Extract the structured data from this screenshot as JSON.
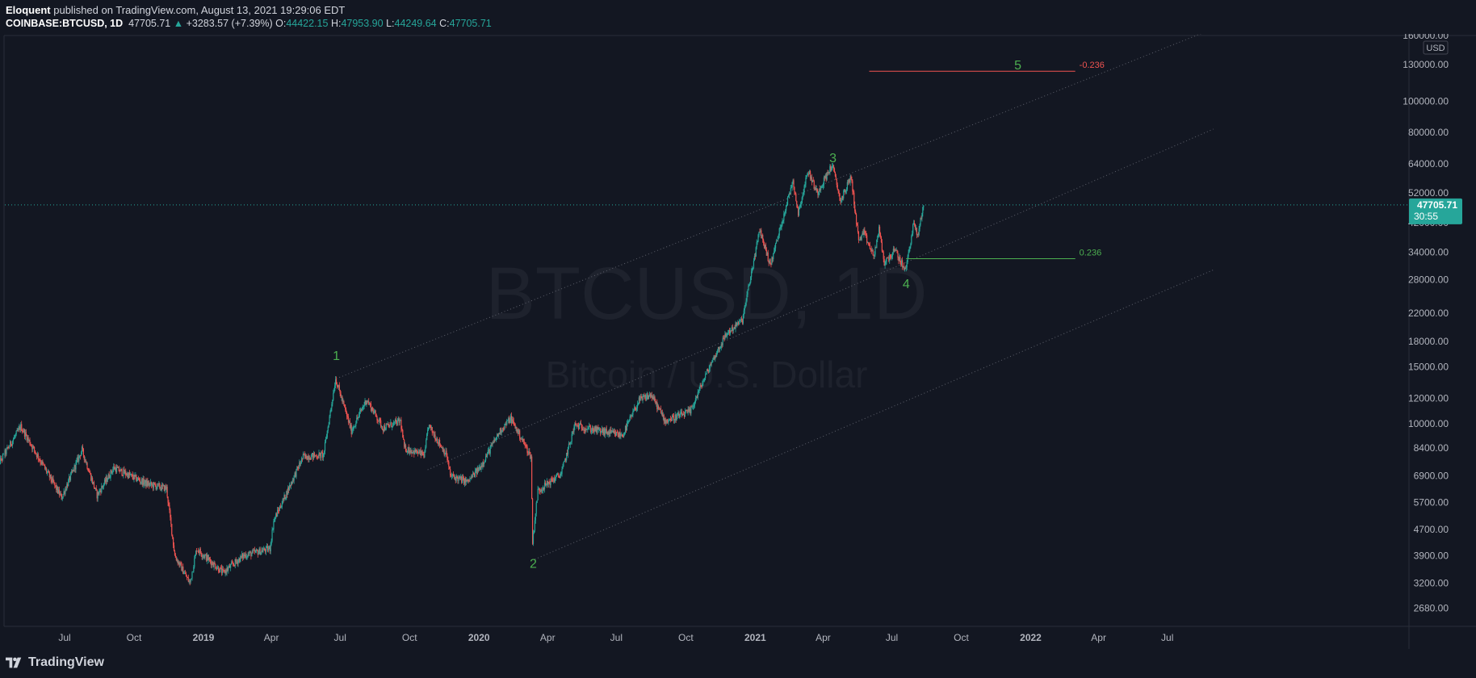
{
  "header": {
    "author": "Eloquent",
    "published_text": "published on TradingView.com, August 13, 2021 19:29:06 EDT",
    "symbol": "COINBASE:BTCUSD, 1D",
    "last": "47705.71",
    "change_arrow": "▲",
    "change": "+3283.57 (+7.39%)",
    "o_label": "O:",
    "o_value": "44422.15",
    "h_label": "H:",
    "h_value": "47953.90",
    "l_label": "L:",
    "l_value": "44249.64",
    "c_label": "C:",
    "c_value": "47705.71"
  },
  "footer": {
    "brand": "TradingView"
  },
  "colors": {
    "background": "#131722",
    "up": "#26a69a",
    "down": "#ef5350",
    "wave_label": "#4caf50",
    "fib_negative": "#ef5350",
    "fib_positive": "#4caf50",
    "axis_text": "#b2b5be",
    "watermark": "#1e222d",
    "price_tag_bg": "#26a69a"
  },
  "chart_data": {
    "type": "candlestick",
    "title": "BTCUSD, 1D",
    "subtitle": "Bitcoin / U.S. Dollar",
    "y_scale": "log",
    "currency": "USD",
    "x_range": [
      "2018-04-01",
      "2022-08-31"
    ],
    "x_ticks": [
      {
        "date": "2018-07-01",
        "label": "Jul"
      },
      {
        "date": "2018-10-01",
        "label": "Oct"
      },
      {
        "date": "2019-01-01",
        "label": "2019",
        "major": true
      },
      {
        "date": "2019-04-01",
        "label": "Apr"
      },
      {
        "date": "2019-07-01",
        "label": "Jul"
      },
      {
        "date": "2019-10-01",
        "label": "Oct"
      },
      {
        "date": "2020-01-01",
        "label": "2020",
        "major": true
      },
      {
        "date": "2020-04-01",
        "label": "Apr"
      },
      {
        "date": "2020-07-01",
        "label": "Jul"
      },
      {
        "date": "2020-10-01",
        "label": "Oct"
      },
      {
        "date": "2021-01-01",
        "label": "2021",
        "major": true
      },
      {
        "date": "2021-04-01",
        "label": "Apr"
      },
      {
        "date": "2021-07-01",
        "label": "Jul"
      },
      {
        "date": "2021-10-01",
        "label": "Oct"
      },
      {
        "date": "2022-01-01",
        "label": "2022",
        "major": true
      },
      {
        "date": "2022-04-01",
        "label": "Apr"
      },
      {
        "date": "2022-07-01",
        "label": "Jul"
      }
    ],
    "y_ticks": [
      {
        "value": 160000,
        "label": "160000.00"
      },
      {
        "value": 130000,
        "label": "130000.00"
      },
      {
        "value": 100000,
        "label": "100000.00"
      },
      {
        "value": 80000,
        "label": "80000.00"
      },
      {
        "value": 64000,
        "label": "64000.00"
      },
      {
        "value": 52000,
        "label": "52000.00"
      },
      {
        "value": 42000,
        "label": "42000.00"
      },
      {
        "value": 34000,
        "label": "34000.00"
      },
      {
        "value": 28000,
        "label": "28000.00"
      },
      {
        "value": 22000,
        "label": "22000.00"
      },
      {
        "value": 18000,
        "label": "18000.00"
      },
      {
        "value": 15000,
        "label": "15000.00"
      },
      {
        "value": 12000,
        "label": "12000.00"
      },
      {
        "value": 10000,
        "label": "10000.00"
      },
      {
        "value": 8400,
        "label": "8400.00"
      },
      {
        "value": 6900,
        "label": "6900.00"
      },
      {
        "value": 5700,
        "label": "5700.00"
      },
      {
        "value": 4700,
        "label": "4700.00"
      },
      {
        "value": 3900,
        "label": "3900.00"
      },
      {
        "value": 3200,
        "label": "3200.00"
      },
      {
        "value": 2680,
        "label": "2680.00"
      }
    ],
    "price_key_points": [
      {
        "date": "2018-04-01",
        "price": 7200
      },
      {
        "date": "2018-05-05",
        "price": 9800
      },
      {
        "date": "2018-06-28",
        "price": 5900
      },
      {
        "date": "2018-07-25",
        "price": 8300
      },
      {
        "date": "2018-08-14",
        "price": 6000
      },
      {
        "date": "2018-09-05",
        "price": 7300
      },
      {
        "date": "2018-10-20",
        "price": 6500
      },
      {
        "date": "2018-11-14",
        "price": 6300
      },
      {
        "date": "2018-11-25",
        "price": 3900
      },
      {
        "date": "2018-12-15",
        "price": 3200
      },
      {
        "date": "2018-12-24",
        "price": 4100
      },
      {
        "date": "2019-01-28",
        "price": 3450
      },
      {
        "date": "2019-02-24",
        "price": 3900
      },
      {
        "date": "2019-03-31",
        "price": 4100
      },
      {
        "date": "2019-04-05",
        "price": 5000
      },
      {
        "date": "2019-05-14",
        "price": 7900
      },
      {
        "date": "2019-06-10",
        "price": 8000
      },
      {
        "date": "2019-06-26",
        "price": 13800
      },
      {
        "date": "2019-07-17",
        "price": 9500
      },
      {
        "date": "2019-08-06",
        "price": 11900
      },
      {
        "date": "2019-08-28",
        "price": 9700
      },
      {
        "date": "2019-09-20",
        "price": 10200
      },
      {
        "date": "2019-09-25",
        "price": 8400
      },
      {
        "date": "2019-10-22",
        "price": 8000
      },
      {
        "date": "2019-10-27",
        "price": 9900
      },
      {
        "date": "2019-11-20",
        "price": 8000
      },
      {
        "date": "2019-11-25",
        "price": 6900
      },
      {
        "date": "2019-12-18",
        "price": 6600
      },
      {
        "date": "2020-01-03",
        "price": 7300
      },
      {
        "date": "2020-01-30",
        "price": 9500
      },
      {
        "date": "2020-02-13",
        "price": 10400
      },
      {
        "date": "2020-03-11",
        "price": 7900
      },
      {
        "date": "2020-03-13",
        "price": 4300
      },
      {
        "date": "2020-03-20",
        "price": 6200
      },
      {
        "date": "2020-04-20",
        "price": 7000
      },
      {
        "date": "2020-05-08",
        "price": 9900
      },
      {
        "date": "2020-06-01",
        "price": 9600
      },
      {
        "date": "2020-07-10",
        "price": 9200
      },
      {
        "date": "2020-08-01",
        "price": 11800
      },
      {
        "date": "2020-08-17",
        "price": 12300
      },
      {
        "date": "2020-09-05",
        "price": 10200
      },
      {
        "date": "2020-10-08",
        "price": 10900
      },
      {
        "date": "2020-10-21",
        "price": 12900
      },
      {
        "date": "2020-11-05",
        "price": 15500
      },
      {
        "date": "2020-11-25",
        "price": 19000
      },
      {
        "date": "2020-12-16",
        "price": 21000
      },
      {
        "date": "2021-01-08",
        "price": 40000
      },
      {
        "date": "2021-01-22",
        "price": 31000
      },
      {
        "date": "2021-02-21",
        "price": 57000
      },
      {
        "date": "2021-02-28",
        "price": 45000
      },
      {
        "date": "2021-03-13",
        "price": 61000
      },
      {
        "date": "2021-03-25",
        "price": 52000
      },
      {
        "date": "2021-04-14",
        "price": 63500
      },
      {
        "date": "2021-04-25",
        "price": 49000
      },
      {
        "date": "2021-05-09",
        "price": 58500
      },
      {
        "date": "2021-05-19",
        "price": 37000
      },
      {
        "date": "2021-05-26",
        "price": 39000
      },
      {
        "date": "2021-06-08",
        "price": 33000
      },
      {
        "date": "2021-06-15",
        "price": 40000
      },
      {
        "date": "2021-06-22",
        "price": 31500
      },
      {
        "date": "2021-07-06",
        "price": 34500
      },
      {
        "date": "2021-07-20",
        "price": 29800
      },
      {
        "date": "2021-07-31",
        "price": 42000
      },
      {
        "date": "2021-08-05",
        "price": 38000
      },
      {
        "date": "2021-08-13",
        "price": 47705.71
      }
    ],
    "channel_lines": [
      {
        "name": "upper",
        "p1": {
          "date": "2019-06-26",
          "price": 13800
        },
        "p2": {
          "date": "2022-08-31",
          "price": 168000
        }
      },
      {
        "name": "middle",
        "p1": {
          "date": "2019-10-25",
          "price": 7200
        },
        "p2": {
          "date": "2022-08-31",
          "price": 82000
        }
      },
      {
        "name": "lower",
        "p1": {
          "date": "2020-03-15",
          "price": 3800
        },
        "p2": {
          "date": "2022-08-31",
          "price": 30000
        }
      }
    ],
    "wave_labels": [
      {
        "text": "1",
        "date": "2019-06-26",
        "price": 16300,
        "position": "above"
      },
      {
        "text": "2",
        "date": "2020-03-13",
        "price": 3700,
        "position": "below"
      },
      {
        "text": "3",
        "date": "2021-04-14",
        "price": 67000,
        "position": "above"
      },
      {
        "text": "4",
        "date": "2021-07-20",
        "price": 27300,
        "position": "below"
      },
      {
        "text": "5",
        "date": "2021-12-15",
        "price": 130000,
        "position": "on-line"
      }
    ],
    "fib_levels": [
      {
        "label": "-0.236",
        "price": 124000,
        "from": "2021-06-01",
        "to": "2022-03-01",
        "color_key": "fib_negative"
      },
      {
        "label": "0.236",
        "price": 32500,
        "from": "2021-07-20",
        "to": "2022-03-01",
        "color_key": "fib_positive"
      }
    ],
    "last_price": {
      "value": 47705.71,
      "label": "47705.71",
      "countdown": "30:55"
    },
    "grid": false,
    "legend": "none"
  }
}
